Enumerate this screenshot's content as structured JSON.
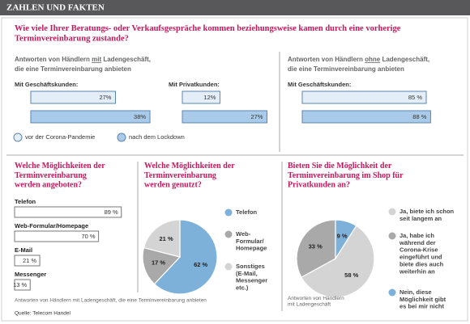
{
  "header": "ZAHLEN UND FAKTEN",
  "source": "Quelle: Telecom Handel",
  "top": {
    "question": "Wie viele Ihrer Beratungs- oder Verkaufsgespräche kommen beziehungsweise kamen durch eine vorherige\nTerminvereinbarung zustande?",
    "left_heading": {
      "pre": "Antworten von Händlern ",
      "emph": "mit",
      "post": " Ladengeschäft,",
      "line2": "die eine Terminvereinbarung anbieten"
    },
    "right_heading": {
      "pre": "Antworten von Händlern ",
      "emph": "ohne",
      "post": " Ladengeschäft,",
      "line2": "die eine Terminvereinbarung anbieten"
    },
    "legend": [
      {
        "name": "vor der Corona-Pandemie",
        "color": "#e4eef8"
      },
      {
        "name": "nach dem Lockdown",
        "color": "#a9cbe9"
      }
    ]
  },
  "bottom_note": "Antworten von Händlern mit Ladengeschäft, die eine Terminvereinbarung anbieten",
  "chart_data": [
    {
      "type": "bar",
      "title": "Mit Geschäftskunden:",
      "values": [
        27,
        38
      ],
      "value_labels": [
        "27%",
        "38%"
      ]
    },
    {
      "type": "bar",
      "title": "Mit Privatkunden:",
      "values": [
        12,
        27
      ],
      "value_labels": [
        "12%",
        "27%"
      ]
    },
    {
      "type": "bar",
      "title": "Mit Geschäftskunden:",
      "values": [
        85,
        88
      ],
      "value_labels": [
        "85 %",
        "88 %"
      ]
    },
    {
      "type": "hbar",
      "title": "Welche Möglichkeiten der\nTerminvereinbarung\nwerden angeboten?",
      "categories": [
        "Telefon",
        "Web-Formular/Homepage",
        "E-Mail",
        "Messenger"
      ],
      "values": [
        89,
        70,
        21,
        13
      ],
      "value_labels": [
        "89 %",
        "70 %",
        "21 %",
        "13 %"
      ]
    },
    {
      "type": "pie",
      "title": "Welche Möglichkeiten der\nTerminvereinbarung\nwerden genutzt?",
      "categories": [
        "Telefon",
        "Web-\nFormular/\nHomepage",
        "Sonstiges\n(E-Mail,\nMessenger\netc.)"
      ],
      "values": [
        62,
        17,
        21
      ],
      "value_labels": [
        "62 %",
        "17 %",
        "21 %"
      ],
      "colors": [
        "#7db1da",
        "#a9a9a9",
        "#d4d4d4"
      ]
    },
    {
      "type": "pie",
      "title": "Bieten Sie die Möglichkeit der\nTerminvereinbarung im Shop für\nPrivatkunden an?",
      "categories": [
        "Ja, biete ich schon\nseit langem an",
        "Ja, habe ich\nwährend der\nCorona-Krise\neingeführt und\nbiete dies auch\nweiterhin an",
        "Nein, diese\nMöglichkeit gibt\nes bei mir nicht"
      ],
      "values": [
        58,
        33,
        9
      ],
      "value_labels": [
        "58 %",
        "33 %",
        "9 %"
      ],
      "colors": [
        "#d4d4d4",
        "#a9a9a9",
        "#7db1da"
      ],
      "note": "Antworten von Händlern\nmit Ladengeschäft"
    }
  ]
}
